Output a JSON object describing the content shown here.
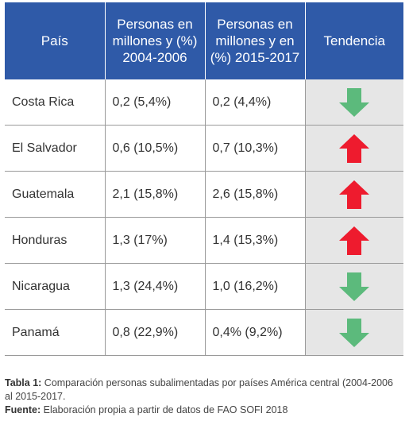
{
  "table": {
    "headers": [
      "País",
      "Personas en millones y (%) 2004-2006",
      "Personas en millones y en (%) 2015-2017",
      "Tendencia"
    ],
    "rows": [
      {
        "country": "Costa Rica",
        "p2004": "0,2 (5,4%)",
        "p2015": "0,2 (4,4%)",
        "trend": "down"
      },
      {
        "country": "El Salvador",
        "p2004": "0,6 (10,5%)",
        "p2015": "0,7 (10,3%)",
        "trend": "up"
      },
      {
        "country": "Guatemala",
        "p2004": "2,1 (15,8%)",
        "p2015": "2,6 (15,8%)",
        "trend": "up"
      },
      {
        "country": "Honduras",
        "p2004": "1,3 (17%)",
        "p2015": "1,4 (15,3%)",
        "trend": "up"
      },
      {
        "country": "Nicaragua",
        "p2004": "1,3 (24,4%)",
        "p2015": "1,0 (16,2%)",
        "trend": "down"
      },
      {
        "country": "Panamá",
        "p2004": "0,8 (22,9%)",
        "p2015": "0,4% (9,2%)",
        "trend": "down"
      }
    ]
  },
  "caption": {
    "label": "Tabla 1:",
    "text": " Comparación personas subalimentadas por países América central (2004-2006 al 2015-2017.",
    "source_label": "Fuente:",
    "source_text": " Elaboración propia a partir de datos de FAO SOFI 2018"
  },
  "colors": {
    "header_bg": "#2f5aa8",
    "trend_bg": "#e6e6e6",
    "arrow_up": "#ee1b2e",
    "arrow_down": "#5cba7c"
  },
  "icons": {
    "up": "arrow-up-icon",
    "down": "arrow-down-icon"
  }
}
